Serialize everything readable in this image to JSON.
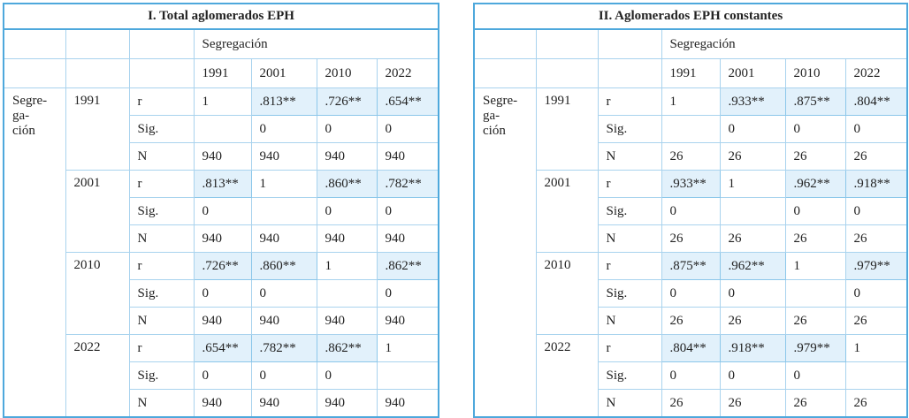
{
  "tables": [
    {
      "title": "I. Total aglomerados EPH",
      "header_label": "Segregación",
      "years": [
        "1991",
        "2001",
        "2010",
        "2022"
      ],
      "row_label": [
        "Segre-",
        "ga-",
        "ción"
      ],
      "groups": [
        {
          "year": "1991",
          "rows": [
            {
              "stat": "r",
              "values": [
                "1",
                ".813**",
                ".726**",
                ".654**"
              ]
            },
            {
              "stat": "Sig.",
              "values": [
                null,
                "0",
                "0",
                "0"
              ]
            },
            {
              "stat": "N",
              "values": [
                "940",
                "940",
                "940",
                "940"
              ]
            }
          ]
        },
        {
          "year": "2001",
          "rows": [
            {
              "stat": "r",
              "values": [
                ".813**",
                "1",
                ".860**",
                ".782**"
              ]
            },
            {
              "stat": "Sig.",
              "values": [
                "0",
                null,
                "0",
                "0"
              ]
            },
            {
              "stat": "N",
              "values": [
                "940",
                "940",
                "940",
                "940"
              ]
            }
          ]
        },
        {
          "year": "2010",
          "rows": [
            {
              "stat": "r",
              "values": [
                ".726**",
                ".860**",
                "1",
                ".862**"
              ]
            },
            {
              "stat": "Sig.",
              "values": [
                "0",
                "0",
                null,
                "0"
              ]
            },
            {
              "stat": "N",
              "values": [
                "940",
                "940",
                "940",
                "940"
              ]
            }
          ]
        },
        {
          "year": "2022",
          "rows": [
            {
              "stat": "r",
              "values": [
                ".654**",
                ".782**",
                ".862**",
                "1"
              ]
            },
            {
              "stat": "Sig.",
              "values": [
                "0",
                "0",
                "0",
                null
              ]
            },
            {
              "stat": "N",
              "values": [
                "940",
                "940",
                "940",
                "940"
              ]
            }
          ]
        }
      ]
    },
    {
      "title": "II. Aglomerados EPH constantes",
      "header_label": "Segregación",
      "years": [
        "1991",
        "2001",
        "2010",
        "2022"
      ],
      "row_label": [
        "Segre-",
        "ga-",
        "ción"
      ],
      "groups": [
        {
          "year": "1991",
          "rows": [
            {
              "stat": "r",
              "values": [
                "1",
                ".933**",
                ".875**",
                ".804**"
              ]
            },
            {
              "stat": "Sig.",
              "values": [
                null,
                "0",
                "0",
                "0"
              ]
            },
            {
              "stat": "N",
              "values": [
                "26",
                "26",
                "26",
                "26"
              ]
            }
          ]
        },
        {
          "year": "2001",
          "rows": [
            {
              "stat": "r",
              "values": [
                ".933**",
                "1",
                ".962**",
                ".918**"
              ]
            },
            {
              "stat": "Sig.",
              "values": [
                "0",
                null,
                "0",
                "0"
              ]
            },
            {
              "stat": "N",
              "values": [
                "26",
                "26",
                "26",
                "26"
              ]
            }
          ]
        },
        {
          "year": "2010",
          "rows": [
            {
              "stat": "r",
              "values": [
                ".875**",
                ".962**",
                "1",
                ".979**"
              ]
            },
            {
              "stat": "Sig.",
              "values": [
                "0",
                "0",
                null,
                "0"
              ]
            },
            {
              "stat": "N",
              "values": [
                "26",
                "26",
                "26",
                "26"
              ]
            }
          ]
        },
        {
          "year": "2022",
          "rows": [
            {
              "stat": "r",
              "values": [
                ".804**",
                ".918**",
                ".979**",
                "1"
              ]
            },
            {
              "stat": "Sig.",
              "values": [
                "0",
                "0",
                "0",
                null
              ]
            },
            {
              "stat": "N",
              "values": [
                "26",
                "26",
                "26",
                "26"
              ]
            }
          ]
        }
      ]
    }
  ]
}
